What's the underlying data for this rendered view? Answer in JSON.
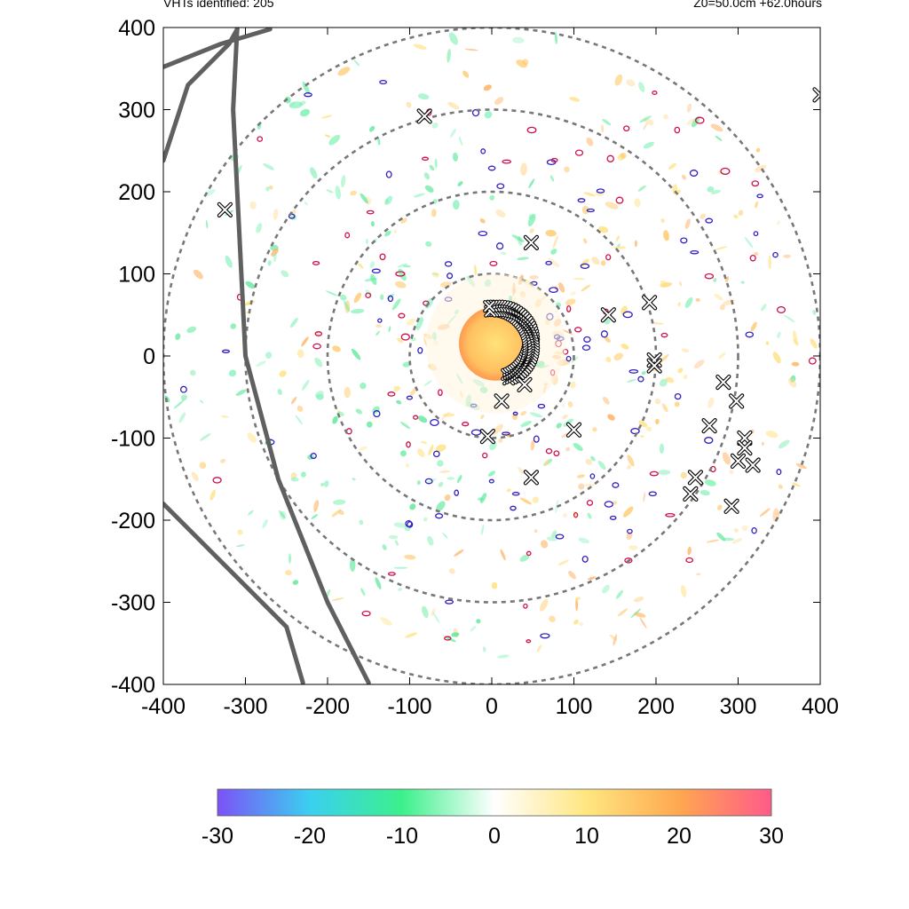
{
  "header": {
    "vht_label": "VHTs identified: 205",
    "run_info": "Z0=50.0cm  +62.0hours"
  },
  "chart_data": {
    "type": "heatmap",
    "xlim": [
      -400,
      400
    ],
    "ylim": [
      -400,
      400
    ],
    "x_ticks": [
      -400,
      -300,
      -200,
      -100,
      0,
      100,
      200,
      300,
      400
    ],
    "y_ticks": [
      -400,
      -300,
      -200,
      -100,
      0,
      100,
      200,
      300,
      400
    ],
    "grid": false,
    "range_rings_radius": [
      100,
      200,
      300,
      400
    ],
    "colorbar": {
      "min": -30,
      "max": 30,
      "ticks": [
        -30,
        -20,
        -10,
        0,
        10,
        20,
        30
      ],
      "tick_labels": [
        "-30",
        "-20",
        "-10",
        "0",
        "10",
        "20",
        "30"
      ],
      "stops": [
        "#7b52f7",
        "#3ad0f0",
        "#3cf08c",
        "#ffffff",
        "#ffe680",
        "#ffa850",
        "#ff5a8a"
      ]
    },
    "eye": {
      "center": [
        5,
        15
      ],
      "radius": 45,
      "value": 20
    },
    "vht_markers": [
      [
        -325,
        178
      ],
      [
        -82,
        292
      ],
      [
        48,
        138
      ],
      [
        142,
        50
      ],
      [
        192,
        65
      ],
      [
        198,
        -5
      ],
      [
        198,
        -12
      ],
      [
        40,
        -35
      ],
      [
        12,
        -55
      ],
      [
        -5,
        -98
      ],
      [
        100,
        -90
      ],
      [
        48,
        -148
      ],
      [
        265,
        -85
      ],
      [
        282,
        -32
      ],
      [
        298,
        -55
      ],
      [
        308,
        -100
      ],
      [
        308,
        -112
      ],
      [
        300,
        -128
      ],
      [
        318,
        -133
      ],
      [
        248,
        -148
      ],
      [
        242,
        -168
      ],
      [
        292,
        -183
      ],
      [
        400,
        318
      ]
    ],
    "vht_arc": {
      "center": [
        5,
        15
      ],
      "radius": 40,
      "angle_start": -70,
      "angle_end": 100,
      "count": 40
    },
    "track_lines": [
      [
        [
          -400,
          352
        ],
        [
          -330,
          380
        ],
        [
          -270,
          398
        ]
      ],
      [
        [
          -400,
          238
        ],
        [
          -370,
          330
        ],
        [
          -320,
          380
        ],
        [
          -310,
          398
        ]
      ],
      [
        [
          -400,
          -180
        ],
        [
          -300,
          -280
        ],
        [
          -250,
          -330
        ],
        [
          -230,
          -398
        ]
      ],
      [
        [
          -310,
          400
        ],
        [
          -315,
          300
        ],
        [
          -300,
          0
        ],
        [
          -260,
          -150
        ],
        [
          -200,
          -300
        ],
        [
          -150,
          -398
        ]
      ]
    ]
  }
}
